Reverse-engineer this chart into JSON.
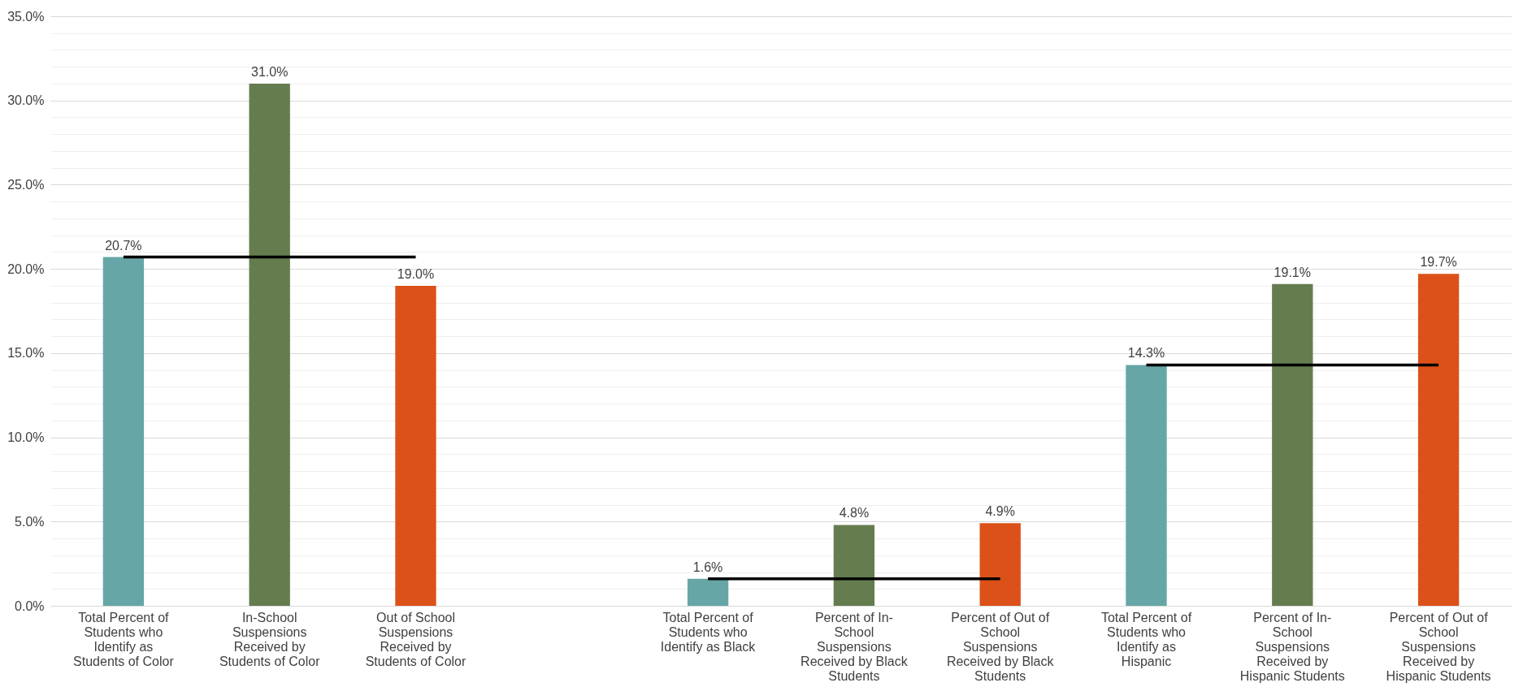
{
  "chart_data": {
    "type": "bar",
    "categories": [
      "Total Percent of Students who Identify as Students of Color",
      "In-School Suspensions Received by Students of Color",
      "Out of School Suspensions Received by Students of Color",
      null,
      "Total Percent of Students who Identify as Black",
      "Percent of In-School Suspensions Received by Black Students",
      "Percent of Out of School Suspensions Received by Black Students",
      "Total Percent of Students who Identify as Hispanic",
      "Percent of In-School Suspensions Received by Hispanic Students",
      "Percent of Out of School Suspensions Received by Hispanic Students"
    ],
    "series": [
      {
        "values": [
          20.7,
          31.0,
          19.0,
          null,
          1.6,
          4.8,
          4.9,
          14.3,
          19.1,
          19.7
        ],
        "colors": [
          "#66a6a6",
          "#657c4f",
          "#dc5119",
          null,
          "#66a6a6",
          "#657c4f",
          "#dc5119",
          "#66a6a6",
          "#657c4f",
          "#dc5119"
        ],
        "value_labels": [
          "20.7%",
          "31.0%",
          "19.0%",
          null,
          "1.6%",
          "4.8%",
          "4.9%",
          "14.3%",
          "19.1%",
          "19.7%"
        ]
      },
      {
        "type": "line",
        "color": "#000000",
        "values": [
          20.7,
          20.7,
          20.7,
          null,
          null,
          null,
          null,
          null,
          null,
          null
        ]
      },
      {
        "type": "line",
        "color": "#000000",
        "values": [
          null,
          null,
          null,
          null,
          1.6,
          1.6,
          1.6,
          null,
          null,
          null
        ]
      },
      {
        "type": "line",
        "color": "#000000",
        "values": [
          null,
          null,
          null,
          null,
          null,
          null,
          null,
          14.3,
          14.3,
          14.3
        ]
      }
    ],
    "ylim": [
      0,
      35
    ],
    "yticks": [
      {
        "value": 0,
        "label": "0.0%"
      },
      {
        "value": 1,
        "label": null
      },
      {
        "value": 2,
        "label": null
      },
      {
        "value": 3,
        "label": null
      },
      {
        "value": 4,
        "label": null
      },
      {
        "value": 5,
        "label": "5.0%"
      },
      {
        "value": 6,
        "label": null
      },
      {
        "value": 7,
        "label": null
      },
      {
        "value": 8,
        "label": null
      },
      {
        "value": 9,
        "label": null
      },
      {
        "value": 10,
        "label": "10.0%"
      },
      {
        "value": 11,
        "label": null
      },
      {
        "value": 12,
        "label": null
      },
      {
        "value": 13,
        "label": null
      },
      {
        "value": 14,
        "label": null
      },
      {
        "value": 15,
        "label": "15.0%"
      },
      {
        "value": 16,
        "label": null
      },
      {
        "value": 17,
        "label": null
      },
      {
        "value": 18,
        "label": null
      },
      {
        "value": 19,
        "label": null
      },
      {
        "value": 20,
        "label": "20.0%"
      },
      {
        "value": 21,
        "label": null
      },
      {
        "value": 22,
        "label": null
      },
      {
        "value": 23,
        "label": null
      },
      {
        "value": 24,
        "label": null
      },
      {
        "value": 25,
        "label": "25.0%"
      },
      {
        "value": 26,
        "label": null
      },
      {
        "value": 27,
        "label": null
      },
      {
        "value": 28,
        "label": null
      },
      {
        "value": 29,
        "label": null
      },
      {
        "value": 30,
        "label": "30.0%"
      },
      {
        "value": 31,
        "label": null
      },
      {
        "value": 32,
        "label": null
      },
      {
        "value": 33,
        "label": null
      },
      {
        "value": 34,
        "label": null
      },
      {
        "value": 35,
        "label": "35.0%"
      }
    ],
    "grid": "y",
    "legend": false
  }
}
